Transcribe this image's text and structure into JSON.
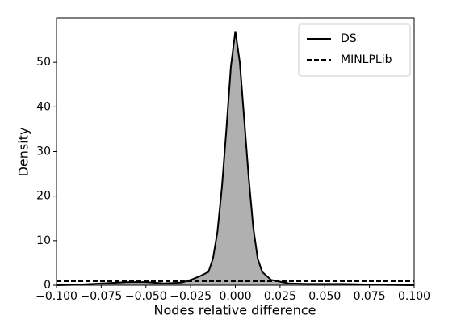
{
  "chart_data": {
    "type": "line",
    "xlabel": "Nodes relative difference",
    "ylabel": "Density",
    "xlim": [
      -0.1,
      0.1
    ],
    "ylim": [
      0,
      60
    ],
    "xticks": [
      {
        "value": -0.1,
        "label": "−0.100"
      },
      {
        "value": -0.075,
        "label": "−0.075"
      },
      {
        "value": -0.05,
        "label": "−0.050"
      },
      {
        "value": -0.025,
        "label": "−0.025"
      },
      {
        "value": 0,
        "label": "0.000"
      },
      {
        "value": 0.025,
        "label": "0.025"
      },
      {
        "value": 0.05,
        "label": "0.050"
      },
      {
        "value": 0.075,
        "label": "0.075"
      },
      {
        "value": 0.1,
        "label": "0.100"
      }
    ],
    "yticks": [
      0,
      10,
      20,
      30,
      40,
      50
    ],
    "legend": "upper right",
    "series": [
      {
        "name": "DS",
        "color": "#000000",
        "dash": "solid",
        "fill": "#b0b0b0",
        "x": [
          -0.1,
          -0.09,
          -0.08,
          -0.07,
          -0.06,
          -0.05,
          -0.04,
          -0.03,
          -0.025,
          -0.02,
          -0.015,
          -0.0125,
          -0.01,
          -0.0075,
          -0.005,
          -0.0025,
          0,
          0.0025,
          0.005,
          0.0075,
          0.01,
          0.0125,
          0.015,
          0.02,
          0.025,
          0.03,
          0.04,
          0.05,
          0.06,
          0.07,
          0.08,
          0.09,
          0.1
        ],
        "values": [
          0,
          0.1,
          0.3,
          0.5,
          0.7,
          0.7,
          0.4,
          0.6,
          1.2,
          2,
          3,
          6,
          12,
          22,
          35,
          49,
          57,
          50,
          37,
          24,
          13,
          6,
          3,
          1.2,
          0.8,
          0.4,
          0.3,
          0.3,
          0.3,
          0.2,
          0.1,
          0.05,
          0
        ]
      },
      {
        "name": "MINLPLib",
        "color": "#000000",
        "dash": "dashed",
        "x": [
          -0.1,
          0.1
        ],
        "values": [
          0.9,
          0.9
        ]
      }
    ]
  }
}
